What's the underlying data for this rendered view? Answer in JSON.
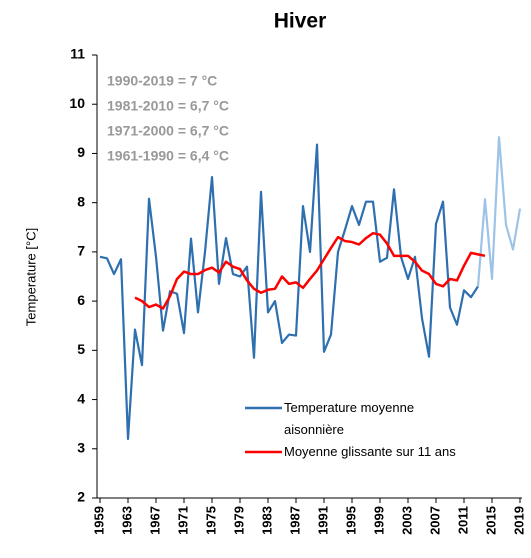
{
  "chart_data": {
    "type": "line",
    "title": "Hiver",
    "ylabel": "Temperature [°C]",
    "annotations": [
      "1990-2019 = 7 °C",
      "1981-2010 = 6,7 °C",
      "1971-2000 = 6,7 °C",
      "1961-1990 = 6,4 °C"
    ],
    "x": [
      1959,
      1960,
      1961,
      1962,
      1963,
      1964,
      1965,
      1966,
      1967,
      1968,
      1969,
      1970,
      1971,
      1972,
      1973,
      1974,
      1975,
      1976,
      1977,
      1978,
      1979,
      1980,
      1981,
      1982,
      1983,
      1984,
      1985,
      1986,
      1987,
      1988,
      1989,
      1990,
      1991,
      1992,
      1993,
      1994,
      1995,
      1996,
      1997,
      1998,
      1999,
      2000,
      2001,
      2002,
      2003,
      2004,
      2005,
      2006,
      2007,
      2008,
      2009,
      2010,
      2011,
      2012,
      2013,
      2014,
      2015,
      2016,
      2017,
      2018,
      2019
    ],
    "series": [
      {
        "name": "Temperature moyenne aisonnière",
        "color": "#2e6fb0",
        "values": [
          6.9,
          6.87,
          6.55,
          6.85,
          3.2,
          5.42,
          4.7,
          8.08,
          6.9,
          5.4,
          6.2,
          6.15,
          5.35,
          7.27,
          5.77,
          7.0,
          8.52,
          6.35,
          7.28,
          6.55,
          6.5,
          6.7,
          4.85,
          8.22,
          5.77,
          6.0,
          5.15,
          5.32,
          5.3,
          7.93,
          7.0,
          9.18,
          4.97,
          5.32,
          7.0,
          7.45,
          7.93,
          7.55,
          8.02,
          8.02,
          6.8,
          6.88,
          8.27,
          6.9,
          6.45,
          6.9,
          5.65,
          4.87,
          7.57,
          8.02,
          5.87,
          5.52,
          6.22,
          6.08,
          6.3,
          null,
          null,
          null,
          null,
          null,
          null
        ]
      },
      {
        "color": "#9dc3e6",
        "values": [
          null,
          null,
          null,
          null,
          null,
          null,
          null,
          null,
          null,
          null,
          null,
          null,
          null,
          null,
          null,
          null,
          null,
          null,
          null,
          null,
          null,
          null,
          null,
          null,
          null,
          null,
          null,
          null,
          null,
          null,
          null,
          null,
          null,
          null,
          null,
          null,
          null,
          null,
          null,
          null,
          null,
          null,
          null,
          null,
          null,
          null,
          null,
          null,
          null,
          null,
          null,
          null,
          null,
          null,
          6.3,
          8.07,
          6.45,
          9.33,
          7.55,
          7.05,
          7.88
        ]
      },
      {
        "name": "Moyenne glissante sur 11 ans",
        "color": "#ff0000",
        "values": [
          null,
          null,
          null,
          null,
          null,
          6.07,
          6.0,
          5.88,
          5.93,
          5.85,
          6.1,
          6.45,
          6.6,
          6.55,
          6.55,
          6.63,
          6.68,
          6.58,
          6.8,
          6.7,
          6.65,
          6.42,
          6.25,
          6.17,
          6.23,
          6.25,
          6.5,
          6.35,
          6.38,
          6.27,
          6.45,
          6.62,
          6.85,
          7.08,
          7.3,
          7.22,
          7.2,
          7.15,
          7.28,
          7.38,
          7.35,
          7.17,
          6.92,
          6.92,
          6.92,
          6.8,
          6.62,
          6.55,
          6.35,
          6.3,
          6.45,
          6.42,
          6.72,
          6.98,
          6.95,
          6.92,
          null,
          null,
          null,
          null,
          null
        ]
      }
    ],
    "xlim": [
      1959,
      2019
    ],
    "xticks": [
      1959,
      1963,
      1967,
      1971,
      1975,
      1979,
      1983,
      1987,
      1991,
      1995,
      1999,
      2003,
      2007,
      2011,
      2015,
      2019
    ],
    "ylim": [
      2,
      11
    ],
    "yticks": [
      2,
      3,
      4,
      5,
      6,
      7,
      8,
      9,
      10,
      11
    ],
    "grid": false
  }
}
